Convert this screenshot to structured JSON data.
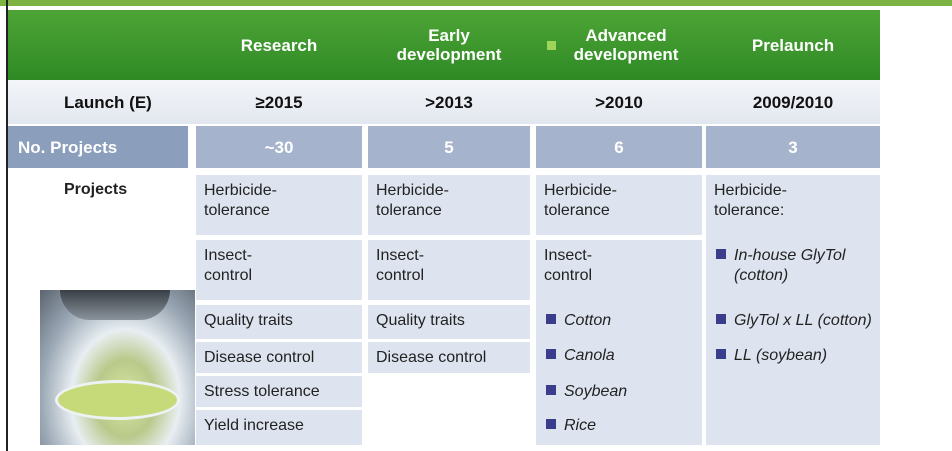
{
  "header": {
    "columns": [
      "Research",
      "Early development",
      "Advanced development",
      "Prelaunch"
    ]
  },
  "rows": {
    "launch": {
      "label": "Launch (E)",
      "values": [
        "≥2015",
        ">2013",
        ">2010",
        "2009/2010"
      ]
    },
    "projects_count": {
      "label": "No. Projects",
      "values": [
        "~30",
        "5",
        "6",
        "3"
      ]
    },
    "projects": {
      "label": "Projects",
      "columns": [
        {
          "items": [
            "Herbicide-tolerance",
            "Insect-control",
            "Quality traits",
            "Disease control",
            "Stress tolerance",
            "Yield increase"
          ]
        },
        {
          "items": [
            "Herbicide-tolerance",
            "Insect-control",
            "Quality traits",
            "Disease control"
          ]
        },
        {
          "items": [
            "Herbicide-tolerance",
            "Insect-control"
          ],
          "bullets": [
            "Cotton",
            "Canola",
            "Soybean",
            "Rice"
          ]
        },
        {
          "heading": "Herbicide-tolerance:",
          "bullets": [
            "In-house GlyTol (cotton)",
            "GlyTol x LL (cotton)",
            "LL (soybean)"
          ]
        }
      ]
    }
  }
}
